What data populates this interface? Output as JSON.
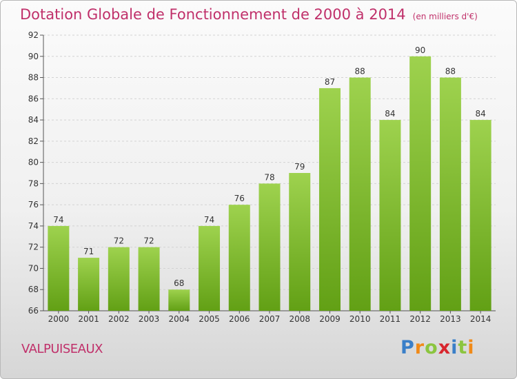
{
  "header": {
    "title": "Dotation Globale de Fonctionnement de 2000 à 2014",
    "subtitle": "(en milliers d'€)"
  },
  "commune": "VALPUISEAUX",
  "logo": {
    "text": "Proxiti",
    "letters": [
      "P",
      "r",
      "o",
      "x",
      "i",
      "t",
      "i"
    ],
    "colors": [
      "#3a7fc8",
      "#f08a18",
      "#8bc53f",
      "#d8262e",
      "#3a7fc8",
      "#8bc53f",
      "#f08a18"
    ]
  },
  "chart_data": {
    "type": "bar",
    "categories": [
      "2000",
      "2001",
      "2002",
      "2003",
      "2004",
      "2005",
      "2006",
      "2007",
      "2008",
      "2009",
      "2010",
      "2011",
      "2012",
      "2013",
      "2014"
    ],
    "values": [
      74,
      71,
      72,
      72,
      68,
      74,
      76,
      78,
      79,
      87,
      88,
      84,
      90,
      88,
      84
    ],
    "title": "Dotation Globale de Fonctionnement de 2000 à 2014",
    "ylim": [
      66,
      92
    ],
    "yticks": [
      66,
      68,
      70,
      72,
      74,
      76,
      78,
      80,
      82,
      84,
      86,
      88,
      90,
      92
    ],
    "grid": true,
    "bar_color": "#7cc22a"
  }
}
